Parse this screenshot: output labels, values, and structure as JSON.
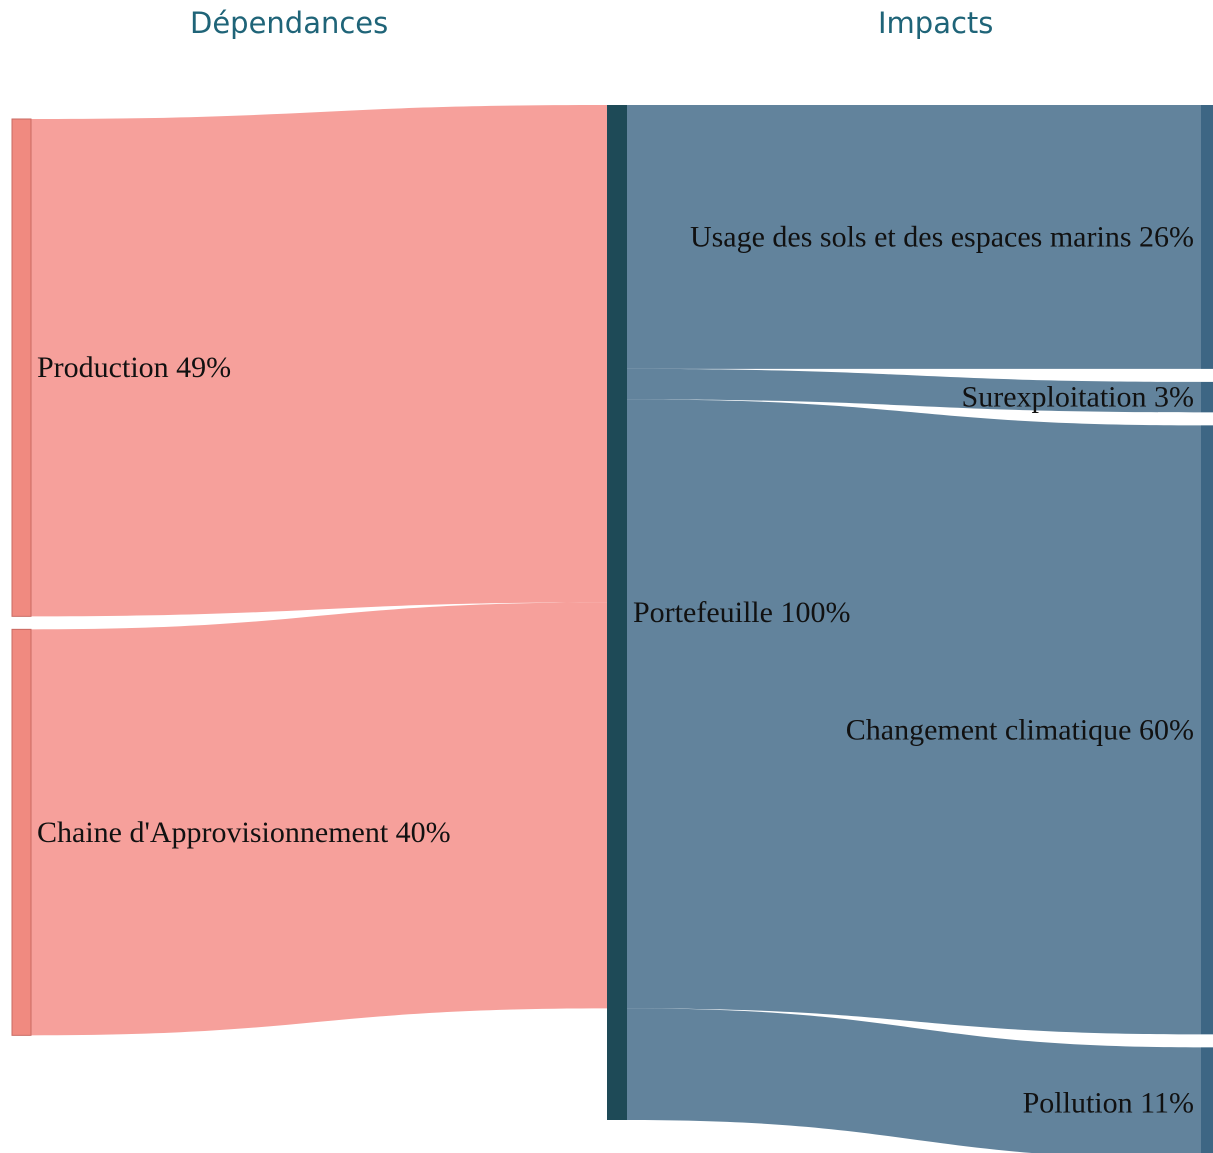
{
  "headers": {
    "left": "Dépendances",
    "right": "Impacts"
  },
  "chart_data": {
    "type": "sankey",
    "title": "",
    "unit": "%",
    "colors": {
      "dependency_node": "#f08a80",
      "dependency_link": "#f6a09b",
      "portfolio_node": "#1e4a57",
      "impact_link": "#62839c",
      "impact_node": "#3d6684",
      "header_text": "#1f6478"
    },
    "nodes": [
      {
        "id": "production",
        "column": "dependances",
        "label": "Production 49%",
        "value": 49
      },
      {
        "id": "chaine",
        "column": "dependances",
        "label": "Chaine d'Approvisionnement 40%",
        "value": 40
      },
      {
        "id": "portefeuille",
        "column": "center",
        "label": "Portefeuille 100%",
        "value": 100
      },
      {
        "id": "usage",
        "column": "impacts",
        "label": "Usage des sols et des espaces marins 26%",
        "value": 26
      },
      {
        "id": "surexploitation",
        "column": "impacts",
        "label": "Surexploitation 3%",
        "value": 3
      },
      {
        "id": "changement",
        "column": "impacts",
        "label": "Changement climatique 60%",
        "value": 60
      },
      {
        "id": "pollution",
        "column": "impacts",
        "label": "Pollution 11%",
        "value": 11
      }
    ],
    "links": [
      {
        "source": "production",
        "target": "portefeuille",
        "value": 49
      },
      {
        "source": "chaine",
        "target": "portefeuille",
        "value": 40
      },
      {
        "source": "portefeuille",
        "target": "usage",
        "value": 26
      },
      {
        "source": "portefeuille",
        "target": "surexploitation",
        "value": 3
      },
      {
        "source": "portefeuille",
        "target": "changement",
        "value": 60
      },
      {
        "source": "portefeuille",
        "target": "pollution",
        "value": 11
      }
    ]
  }
}
